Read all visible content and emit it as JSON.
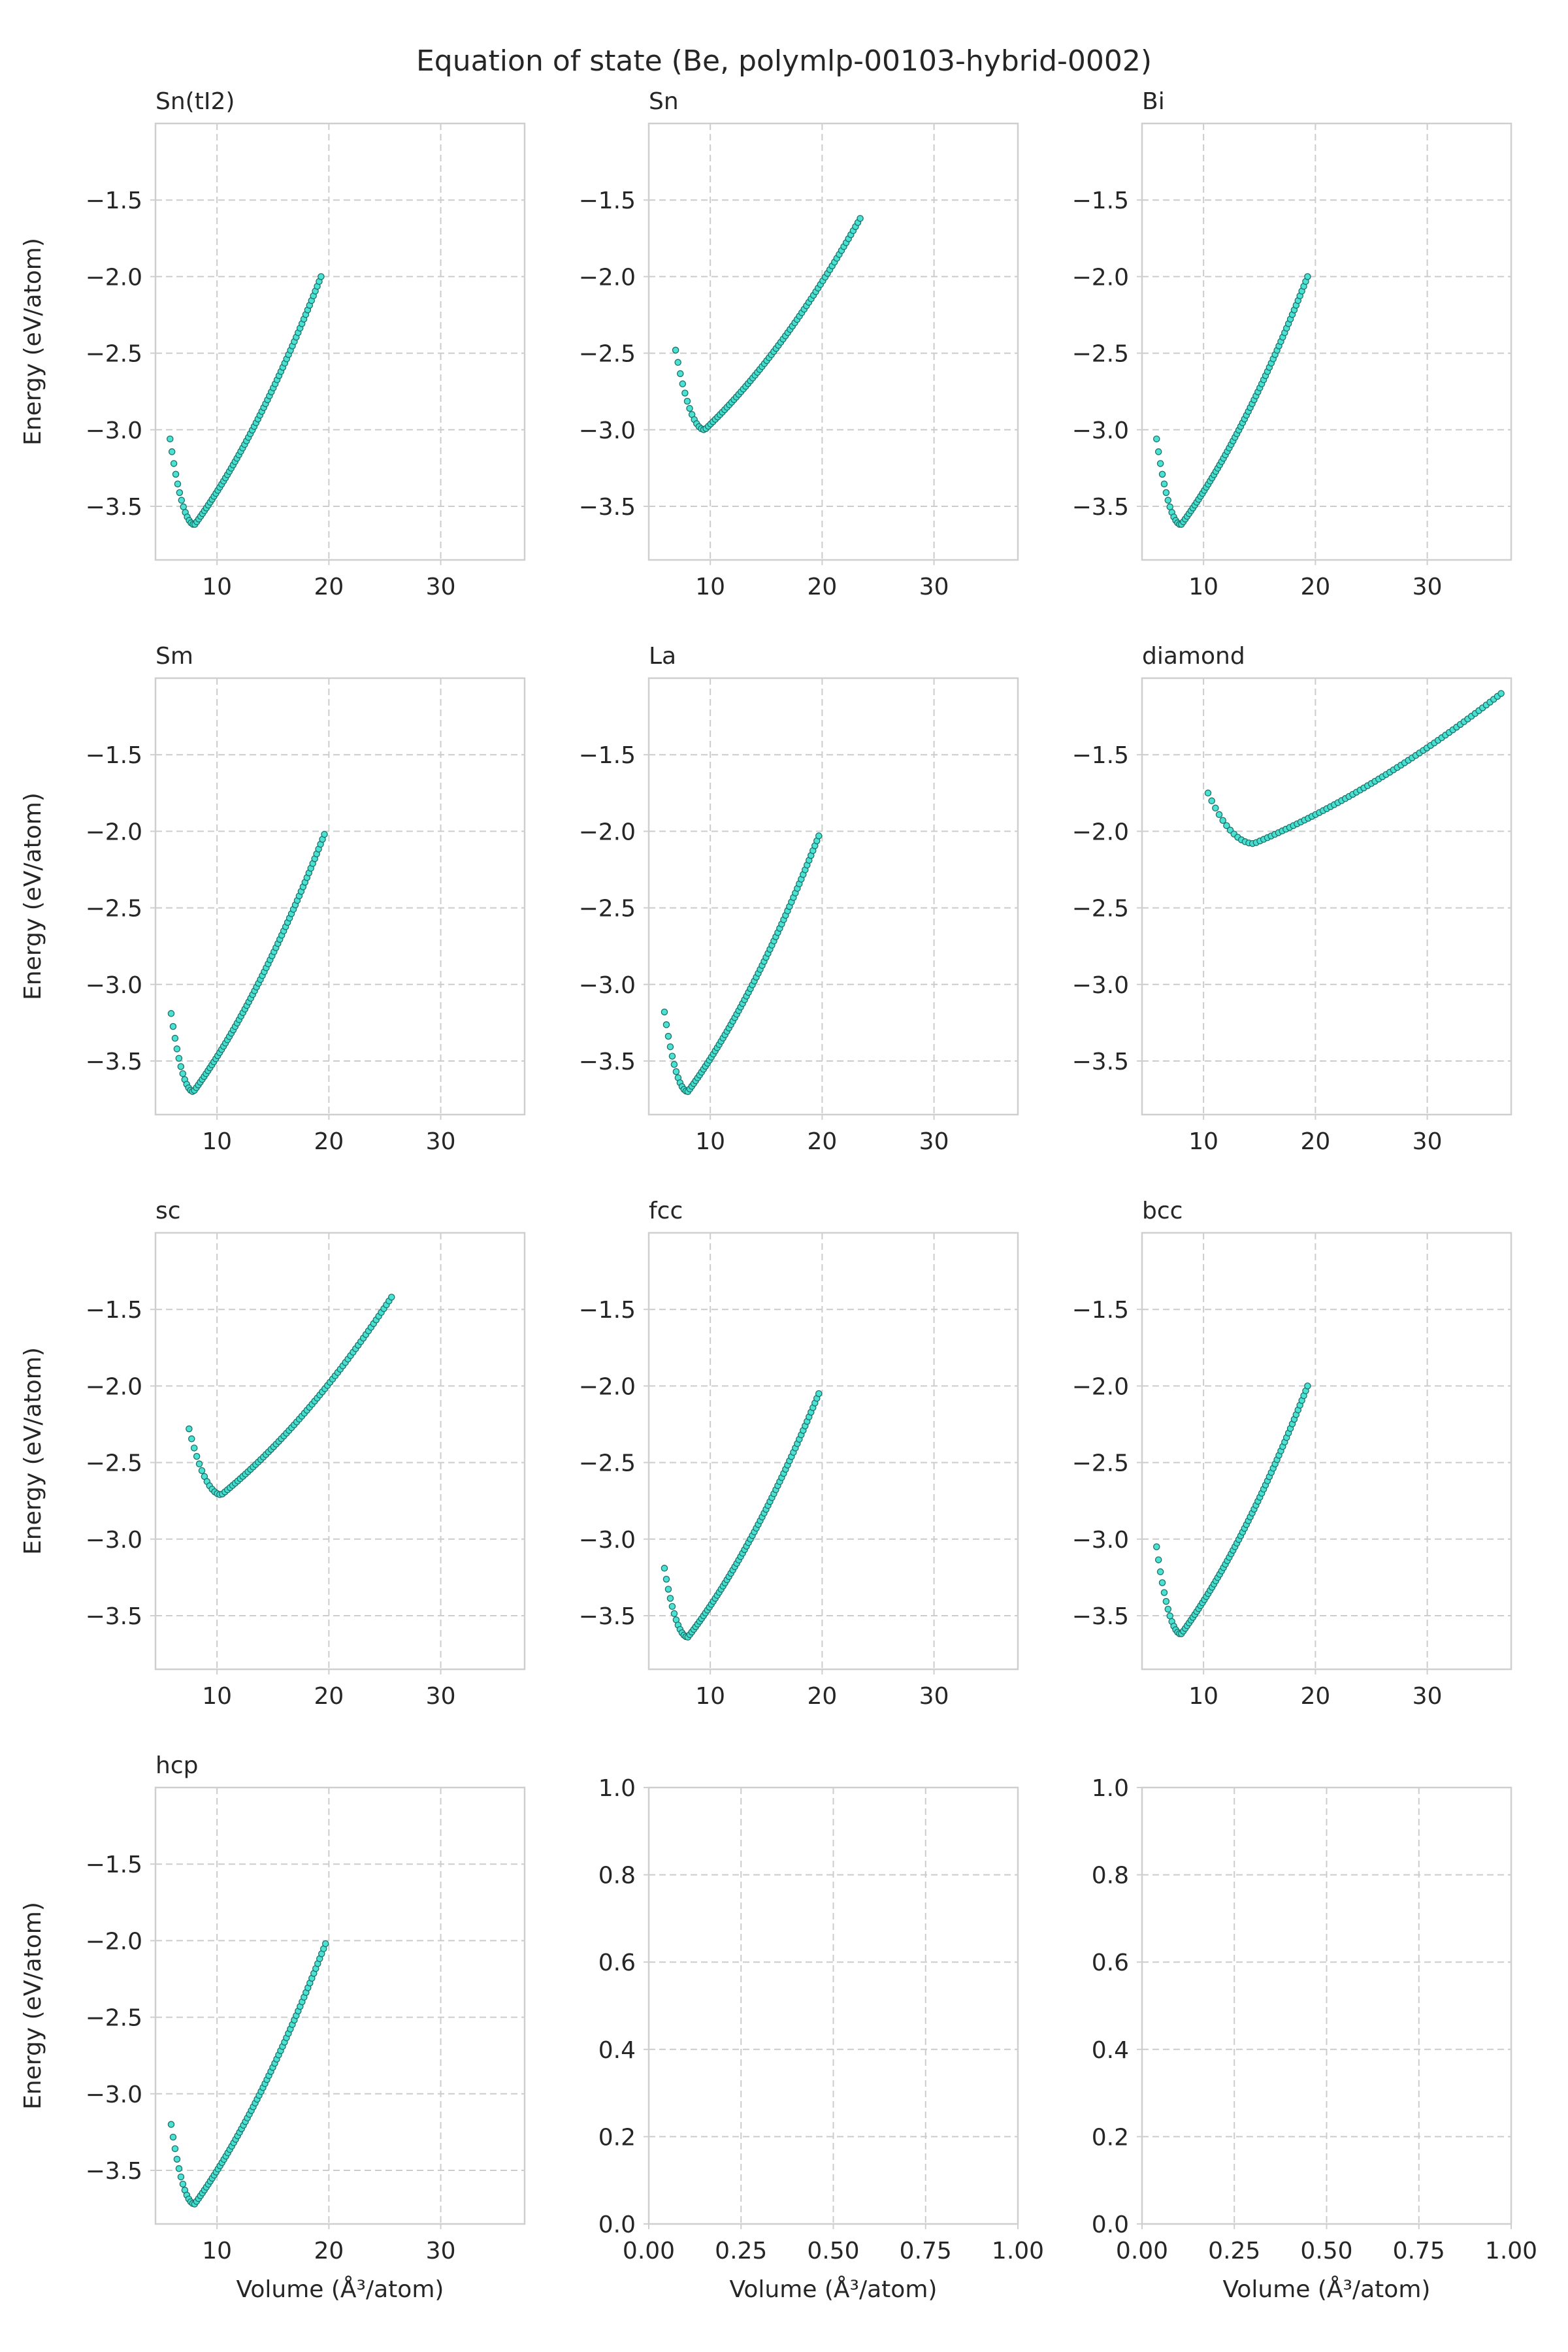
{
  "figure_title": "Equation of state (Be, polymlp-00103-hybrid-0002)",
  "colors": {
    "marker_fill": "#40e0d0",
    "marker_edge": "#1f6f68",
    "grid": "#cccccc",
    "frame": "#cfcfcf",
    "text": "#262626"
  },
  "chart_data": [
    {
      "type": "scatter",
      "title": "Sn(tI2)",
      "xlabel": "",
      "ylabel": "Energy (eV/atom)",
      "xlim": [
        4.5,
        37.5
      ],
      "ylim": [
        -3.85,
        -1.0
      ],
      "xticks": [
        10,
        20,
        30
      ],
      "yticks": [
        -3.5,
        -3.0,
        -2.5,
        -2.0,
        -1.5
      ],
      "xtick_labels": [
        "10",
        "20",
        "30"
      ],
      "ytick_labels": [
        "−3.5",
        "−3.0",
        "−2.5",
        "−2.0",
        "−1.5"
      ],
      "grid": true,
      "curve": {
        "v_start": 5.8,
        "v_end": 19.3,
        "v0": 8.0,
        "e_min": -3.62,
        "e_start": -3.06,
        "e_end": -2.0,
        "n": 80
      }
    },
    {
      "type": "scatter",
      "title": "Sn",
      "xlabel": "",
      "ylabel": "",
      "xlim": [
        4.5,
        37.5
      ],
      "ylim": [
        -3.85,
        -1.0
      ],
      "xticks": [
        10,
        20,
        30
      ],
      "yticks": [
        -3.5,
        -3.0,
        -2.5,
        -2.0,
        -1.5
      ],
      "xtick_labels": [
        "10",
        "20",
        "30"
      ],
      "ytick_labels": [
        "−3.5",
        "−3.0",
        "−2.5",
        "−2.0",
        "−1.5"
      ],
      "grid": true,
      "curve": {
        "v_start": 6.9,
        "v_end": 23.4,
        "v0": 9.5,
        "e_min": -3.0,
        "e_start": -2.48,
        "e_end": -1.62,
        "n": 80
      }
    },
    {
      "type": "scatter",
      "title": "Bi",
      "xlabel": "",
      "ylabel": "",
      "xlim": [
        4.5,
        37.5
      ],
      "ylim": [
        -3.85,
        -1.0
      ],
      "xticks": [
        10,
        20,
        30
      ],
      "yticks": [
        -3.5,
        -3.0,
        -2.5,
        -2.0,
        -1.5
      ],
      "xtick_labels": [
        "10",
        "20",
        "30"
      ],
      "ytick_labels": [
        "−3.5",
        "−3.0",
        "−2.5",
        "−2.0",
        "−1.5"
      ],
      "grid": true,
      "curve": {
        "v_start": 5.8,
        "v_end": 19.3,
        "v0": 8.0,
        "e_min": -3.62,
        "e_start": -3.06,
        "e_end": -2.0,
        "n": 80
      }
    },
    {
      "type": "scatter",
      "title": "Sm",
      "xlabel": "",
      "ylabel": "Energy (eV/atom)",
      "xlim": [
        4.5,
        37.5
      ],
      "ylim": [
        -3.85,
        -1.0
      ],
      "xticks": [
        10,
        20,
        30
      ],
      "yticks": [
        -3.5,
        -3.0,
        -2.5,
        -2.0,
        -1.5
      ],
      "xtick_labels": [
        "10",
        "20",
        "30"
      ],
      "ytick_labels": [
        "−3.5",
        "−3.0",
        "−2.5",
        "−2.0",
        "−1.5"
      ],
      "grid": true,
      "curve": {
        "v_start": 5.9,
        "v_end": 19.6,
        "v0": 7.9,
        "e_min": -3.7,
        "e_start": -3.19,
        "e_end": -2.02,
        "n": 80
      }
    },
    {
      "type": "scatter",
      "title": "La",
      "xlabel": "",
      "ylabel": "",
      "xlim": [
        4.5,
        37.5
      ],
      "ylim": [
        -3.85,
        -1.0
      ],
      "xticks": [
        10,
        20,
        30
      ],
      "yticks": [
        -3.5,
        -3.0,
        -2.5,
        -2.0,
        -1.5
      ],
      "xtick_labels": [
        "10",
        "20",
        "30"
      ],
      "ytick_labels": [
        "−3.5",
        "−3.0",
        "−2.5",
        "−2.0",
        "−1.5"
      ],
      "grid": true,
      "curve": {
        "v_start": 5.9,
        "v_end": 19.7,
        "v0": 8.0,
        "e_min": -3.7,
        "e_start": -3.18,
        "e_end": -2.03,
        "n": 80
      }
    },
    {
      "type": "scatter",
      "title": "diamond",
      "xlabel": "",
      "ylabel": "",
      "xlim": [
        4.5,
        37.5
      ],
      "ylim": [
        -3.85,
        -1.0
      ],
      "xticks": [
        10,
        20,
        30
      ],
      "yticks": [
        -3.5,
        -3.0,
        -2.5,
        -2.0,
        -1.5
      ],
      "xtick_labels": [
        "10",
        "20",
        "30"
      ],
      "ytick_labels": [
        "−3.5",
        "−3.0",
        "−2.5",
        "−2.0",
        "−1.5"
      ],
      "grid": true,
      "curve": {
        "v_start": 10.4,
        "v_end": 36.6,
        "v0": 14.5,
        "e_min": -2.08,
        "e_start": -1.75,
        "e_end": -1.1,
        "n": 80
      }
    },
    {
      "type": "scatter",
      "title": "sc",
      "xlabel": "",
      "ylabel": "Energy (eV/atom)",
      "xlim": [
        4.5,
        37.5
      ],
      "ylim": [
        -3.85,
        -1.0
      ],
      "xticks": [
        10,
        20,
        30
      ],
      "yticks": [
        -3.5,
        -3.0,
        -2.5,
        -2.0,
        -1.5
      ],
      "xtick_labels": [
        "10",
        "20",
        "30"
      ],
      "ytick_labels": [
        "−3.5",
        "−3.0",
        "−2.5",
        "−2.0",
        "−1.5"
      ],
      "grid": true,
      "curve": {
        "v_start": 7.5,
        "v_end": 25.6,
        "v0": 10.4,
        "e_min": -2.71,
        "e_start": -2.28,
        "e_end": -1.42,
        "n": 80
      }
    },
    {
      "type": "scatter",
      "title": "fcc",
      "xlabel": "",
      "ylabel": "",
      "xlim": [
        4.5,
        37.5
      ],
      "ylim": [
        -3.85,
        -1.0
      ],
      "xticks": [
        10,
        20,
        30
      ],
      "yticks": [
        -3.5,
        -3.0,
        -2.5,
        -2.0,
        -1.5
      ],
      "xtick_labels": [
        "10",
        "20",
        "30"
      ],
      "ytick_labels": [
        "−3.5",
        "−3.0",
        "−2.5",
        "−2.0",
        "−1.5"
      ],
      "grid": true,
      "curve": {
        "v_start": 5.9,
        "v_end": 19.7,
        "v0": 8.0,
        "e_min": -3.64,
        "e_start": -3.19,
        "e_end": -2.05,
        "n": 80
      }
    },
    {
      "type": "scatter",
      "title": "bcc",
      "xlabel": "",
      "ylabel": "",
      "xlim": [
        4.5,
        37.5
      ],
      "ylim": [
        -3.85,
        -1.0
      ],
      "xticks": [
        10,
        20,
        30
      ],
      "yticks": [
        -3.5,
        -3.0,
        -2.5,
        -2.0,
        -1.5
      ],
      "xtick_labels": [
        "10",
        "20",
        "30"
      ],
      "ytick_labels": [
        "−3.5",
        "−3.0",
        "−2.5",
        "−2.0",
        "−1.5"
      ],
      "grid": true,
      "curve": {
        "v_start": 5.8,
        "v_end": 19.3,
        "v0": 8.0,
        "e_min": -3.62,
        "e_start": -3.05,
        "e_end": -2.0,
        "n": 80
      }
    },
    {
      "type": "scatter",
      "title": "hcp",
      "xlabel": "Volume (Å³/atom)",
      "ylabel": "Energy (eV/atom)",
      "xlim": [
        4.5,
        37.5
      ],
      "ylim": [
        -3.85,
        -1.0
      ],
      "xticks": [
        10,
        20,
        30
      ],
      "yticks": [
        -3.5,
        -3.0,
        -2.5,
        -2.0,
        -1.5
      ],
      "xtick_labels": [
        "10",
        "20",
        "30"
      ],
      "ytick_labels": [
        "−3.5",
        "−3.0",
        "−2.5",
        "−2.0",
        "−1.5"
      ],
      "grid": true,
      "curve": {
        "v_start": 5.9,
        "v_end": 19.7,
        "v0": 8.0,
        "e_min": -3.72,
        "e_start": -3.2,
        "e_end": -2.02,
        "n": 80
      }
    },
    {
      "type": "scatter",
      "title": "",
      "xlabel": "Volume (Å³/atom)",
      "ylabel": "",
      "xlim": [
        0,
        1
      ],
      "ylim": [
        0,
        1
      ],
      "xticks": [
        0,
        0.25,
        0.5,
        0.75,
        1.0
      ],
      "yticks": [
        0,
        0.2,
        0.4,
        0.6,
        0.8,
        1.0
      ],
      "xtick_labels": [
        "0.00",
        "0.25",
        "0.50",
        "0.75",
        "1.00"
      ],
      "ytick_labels": [
        "0.0",
        "0.2",
        "0.4",
        "0.6",
        "0.8",
        "1.0"
      ],
      "grid": true,
      "curve": null
    },
    {
      "type": "scatter",
      "title": "",
      "xlabel": "Volume (Å³/atom)",
      "ylabel": "",
      "xlim": [
        0,
        1
      ],
      "ylim": [
        0,
        1
      ],
      "xticks": [
        0,
        0.25,
        0.5,
        0.75,
        1.0
      ],
      "yticks": [
        0,
        0.2,
        0.4,
        0.6,
        0.8,
        1.0
      ],
      "xtick_labels": [
        "0.00",
        "0.25",
        "0.50",
        "0.75",
        "1.00"
      ],
      "ytick_labels": [
        "0.0",
        "0.2",
        "0.4",
        "0.6",
        "0.8",
        "1.0"
      ],
      "grid": true,
      "curve": null
    }
  ]
}
